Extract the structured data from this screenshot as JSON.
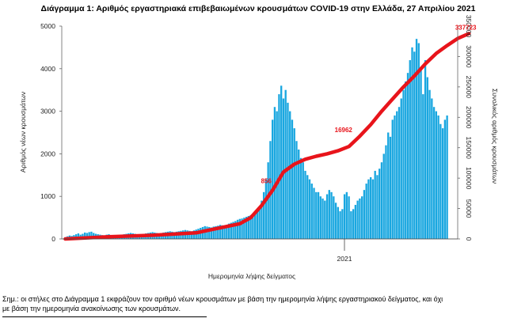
{
  "chart_data": {
    "type": "bar+line",
    "title": "Διάγραμμα 1: Αριθμός εργαστηριακά επιβεβαιωμένων κρουσμάτων COVID-19 στην Ελλάδα, 27 Απριλίου 2021",
    "xlabel": "Ημερομηνία λήψης δείγματος",
    "ylabel_left": "Αριθμός νέων κρουσμάτων",
    "ylabel_right": "Συνολικός αριθμός κρουσμάτων",
    "x_tick_label": "2021",
    "ylim_left": [
      0,
      5000
    ],
    "yticks_left": [
      "0",
      "1000",
      "2000",
      "3000",
      "4000",
      "5000"
    ],
    "ylim_right": [
      0,
      350000
    ],
    "yticks_right": [
      "0",
      "50000",
      "100000",
      "150000",
      "200000",
      "250000",
      "300000",
      "350000"
    ],
    "grid": false,
    "colors": {
      "bars": "#1aa7e0",
      "line": "#e8141b"
    },
    "series": [
      {
        "type": "bar",
        "axis": "left",
        "values": [
          40,
          60,
          80,
          70,
          90,
          110,
          130,
          100,
          120,
          150,
          140,
          160,
          170,
          140,
          120,
          110,
          100,
          90,
          80,
          100,
          110,
          90,
          80,
          70,
          80,
          90,
          100,
          110,
          120,
          130,
          140,
          130,
          120,
          110,
          100,
          110,
          120,
          130,
          140,
          150,
          160,
          150,
          140,
          130,
          140,
          150,
          160,
          170,
          180,
          170,
          160,
          170,
          180,
          190,
          200,
          210,
          200,
          190,
          180,
          200,
          220,
          240,
          260,
          280,
          300,
          290,
          280,
          270,
          290,
          300,
          310,
          330,
          320,
          310,
          330,
          360,
          380,
          400,
          420,
          450,
          470,
          480,
          500,
          520,
          540,
          560,
          580,
          620,
          680,
          760,
          900,
          1100,
          1400,
          1800,
          2300,
          2800,
          3100,
          3000,
          3400,
          3600,
          3300,
          3500,
          3200,
          3000,
          2800,
          2600,
          2300,
          2100,
          1900,
          1800,
          1600,
          1500,
          1400,
          1300,
          1200,
          1100,
          1100,
          1000,
          950,
          900,
          1050,
          1150,
          1100,
          1000,
          850,
          750,
          650,
          700,
          1050,
          1100,
          1000,
          650,
          700,
          800,
          900,
          950,
          1000,
          1150,
          1300,
          1400,
          1450,
          1400,
          1600,
          1500,
          1650,
          1800,
          2000,
          2200,
          2500,
          2400,
          2800,
          2900,
          3000,
          3100,
          3300,
          3500,
          3700,
          3900,
          4200,
          4500,
          4400,
          4700,
          4600,
          4000,
          3400,
          4200,
          3800,
          3500,
          3300,
          3100,
          3000,
          2900,
          2700,
          2600,
          2800,
          2900
        ]
      },
      {
        "type": "line",
        "axis": "right",
        "x": [
          0,
          20,
          40,
          60,
          80,
          85,
          90,
          95,
          100,
          105,
          110,
          115,
          120,
          125,
          130,
          135,
          140,
          145,
          150,
          155,
          160,
          165,
          170,
          175,
          180,
          185
        ],
        "values": [
          0,
          3500,
          6000,
          10000,
          25000,
          35000,
          55000,
          80000,
          110000,
          123000,
          131000,
          136000,
          140000,
          145000,
          152000,
          169000,
          188000,
          210000,
          230000,
          250000,
          268000,
          288000,
          305000,
          318000,
          330000,
          337723
        ]
      }
    ],
    "annotations": [
      {
        "label": "337723",
        "at_x": 185,
        "at_y": 337723,
        "axis": "right"
      },
      {
        "label": "16962",
        "at_x": 133,
        "at_y": 169000,
        "axis": "right"
      },
      {
        "label": "856",
        "at_x": 96,
        "at_y": 85000,
        "axis": "right"
      }
    ]
  },
  "footnote": {
    "line1": "Σημ.: οι στήλες στο Διάγραμμα 1 εκφράζουν τον αριθμό νέων κρουσμάτων με βάση την ημερομηνία λήψης εργαστηριακού δείγματος, και όχι",
    "line2": "με βάση την ημερομηνία ανακοίνωσης των κρουσμάτων."
  }
}
